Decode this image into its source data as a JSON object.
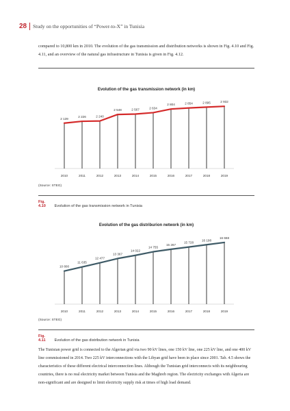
{
  "header": {
    "page_number": "28",
    "title": "Study on the opportunities of “Power-to-X” in Tunisia"
  },
  "intro_text": "compared to 10,800 km in 2010. The evolution of the gas transmission and distribution networks is shown in Fig. 4.10 and Fig. 4.11, and an overview of the natural gas infrastructure in Tunisia is given in Fig. 4.12.",
  "colors": {
    "accent": "#c0262e",
    "transmission_line": "#d42a2a",
    "distribution_line": "#3e5a66"
  },
  "figure1": {
    "source": "(Source: STEG)",
    "caption_num": "Fig. 4.10",
    "caption_text": "Evolution of the gas transmission network in Tunisia"
  },
  "figure2": {
    "source": "(Source: STEG)",
    "caption_num": "Fig. 4.11",
    "caption_text": "Evolution of the gas distribution network in Tunisia"
  },
  "body_text": "The Tunisian power grid is connected to the Algerian grid via two 90 kV lines, one 150 kV line, one 225 kV line, and one 400 kV line commissioned in 2014. Two 225 kV interconnections with the Libyan grid have been in place since 2001. Tab. 4.5 shows the characteristics of these different electrical interconnection lines. Although the Tunisian grid interconnects with its neighbouring countries, there is no real electricity market between Tunisia and the Maghreb region. The electricity exchanges with Algeria are non-significant and are designed to limit electricity supply risk at times of high load demand.",
  "chart_data": [
    {
      "type": "line",
      "title": "Evolution of the gas transmission network (in km)",
      "categories": [
        "2010",
        "2011",
        "2012",
        "2013",
        "2014",
        "2015",
        "2016",
        "2017",
        "2018",
        "2019"
      ],
      "values": [
        2139,
        2226,
        2240,
        2548,
        2567,
        2634,
        2804,
        2854,
        2895,
        2932
      ],
      "value_labels": [
        "2 139",
        "2 226",
        "2 240",
        "2 548",
        "2 567",
        "2 634",
        "2 804",
        "2 854",
        "2 895",
        "2 932"
      ],
      "ylim": [
        0,
        3100
      ],
      "grid": false,
      "color": "#d42a2a"
    },
    {
      "type": "line",
      "title": "Evolution of the gas distriburion network (in km)",
      "categories": [
        "2010",
        "2011",
        "2012",
        "2013",
        "2014",
        "2015",
        "2016",
        "2017",
        "2018",
        "2019"
      ],
      "values": [
        10800,
        11635,
        12477,
        13367,
        14022,
        14755,
        15267,
        15728,
        16198,
        16668
      ],
      "value_labels": [
        "10 800",
        "11 635",
        "12 477",
        "13 367",
        "14 022",
        "14 755",
        "15 267",
        "15 728",
        "16 198",
        "16 668"
      ],
      "ylim": [
        4000,
        17500
      ],
      "grid": false,
      "color": "#3e5a66"
    }
  ]
}
